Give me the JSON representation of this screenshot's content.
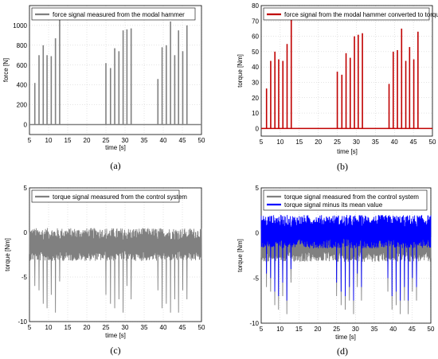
{
  "chart_data": [
    {
      "type": "bar",
      "panel_label": "(a)",
      "xlabel": "time [s]",
      "ylabel": "force [N]",
      "xlim": [
        5,
        50
      ],
      "ylim": [
        -100,
        1200
      ],
      "xticks": [
        5,
        10,
        15,
        20,
        25,
        30,
        35,
        40,
        45,
        50
      ],
      "yticks": [
        0,
        200,
        400,
        600,
        800,
        1000
      ],
      "grid": true,
      "legend_position": "top-left",
      "series": [
        {
          "name": "force signal measured from the modal hammer",
          "color": "#808080",
          "x": [
            6.4,
            7.5,
            8.6,
            9.6,
            10.7,
            11.8,
            12.9,
            25.0,
            26.2,
            27.3,
            28.4,
            29.5,
            30.5,
            31.6,
            38.6,
            39.7,
            40.8,
            41.9,
            43.0,
            44.0,
            45.1,
            46.2
          ],
          "values": [
            420,
            700,
            800,
            700,
            690,
            870,
            1150,
            620,
            570,
            770,
            740,
            950,
            960,
            970,
            460,
            780,
            800,
            1040,
            700,
            950,
            740,
            1000
          ]
        }
      ]
    },
    {
      "type": "bar",
      "panel_label": "(b)",
      "xlabel": "time [s]",
      "ylabel": "torque [Nm]",
      "xlim": [
        5,
        50
      ],
      "ylim": [
        -5,
        80
      ],
      "xticks": [
        5,
        10,
        15,
        20,
        25,
        30,
        35,
        40,
        45,
        50
      ],
      "yticks": [
        0,
        10,
        20,
        30,
        40,
        50,
        60,
        70,
        80
      ],
      "grid": true,
      "legend_position": "top-left",
      "series": [
        {
          "name": "force signal from the modal hammer converted to torque",
          "color": "#c00000",
          "x": [
            6.4,
            7.5,
            8.6,
            9.6,
            10.7,
            11.8,
            12.9,
            25.0,
            26.2,
            27.3,
            28.4,
            29.5,
            30.5,
            31.6,
            38.6,
            39.7,
            40.8,
            41.9,
            43.0,
            44.0,
            45.1,
            46.2
          ],
          "values": [
            26,
            44,
            50,
            45,
            44,
            55,
            72,
            37,
            35,
            49,
            46,
            60,
            61,
            62,
            29,
            50,
            51,
            65,
            44,
            53,
            45,
            63
          ]
        }
      ]
    },
    {
      "type": "line",
      "panel_label": "(c)",
      "xlabel": "time [s]",
      "ylabel": "torque [Nm]",
      "xlim": [
        5,
        50
      ],
      "ylim": [
        -10,
        5
      ],
      "xticks": [
        5,
        10,
        15,
        20,
        25,
        30,
        35,
        40,
        45,
        50
      ],
      "yticks": [
        -10,
        -5,
        0,
        5
      ],
      "grid": true,
      "legend_position": "top-left",
      "series": [
        {
          "name": "torque signal measured from the control system",
          "color": "#808080",
          "mean": -1.5,
          "noise_band": [
            -3.2,
            0.5
          ],
          "dips_x": [
            6.4,
            7.5,
            8.6,
            9.6,
            10.7,
            11.8,
            12.9,
            25.0,
            26.2,
            27.3,
            28.4,
            29.5,
            30.5,
            31.6,
            38.6,
            39.7,
            40.8,
            41.9,
            43.0,
            44.0,
            45.1,
            46.2
          ],
          "dips_y": [
            -6.0,
            -6.5,
            -8.0,
            -8.5,
            -7.0,
            -9.0,
            -5.5,
            -7.0,
            -8.0,
            -8.5,
            -7.5,
            -9.0,
            -6.0,
            -7.5,
            -6.5,
            -8.5,
            -8.0,
            -9.0,
            -7.5,
            -9.0,
            -6.5,
            -7.5
          ]
        }
      ]
    },
    {
      "type": "line",
      "panel_label": "(d)",
      "xlabel": "time [s]",
      "ylabel": "torque [Nm]",
      "xlim": [
        5,
        50
      ],
      "ylim": [
        -10,
        5
      ],
      "xticks": [
        5,
        10,
        15,
        20,
        25,
        30,
        35,
        40,
        45,
        50
      ],
      "yticks": [
        -10,
        -5,
        0,
        5
      ],
      "grid": true,
      "legend_position": "top-left",
      "series": [
        {
          "name": "torque signal measured from the control system",
          "color": "#808080",
          "mean": -1.5,
          "noise_band": [
            -3.2,
            0.5
          ],
          "dips_x": [
            6.4,
            7.5,
            8.6,
            9.6,
            10.7,
            11.8,
            12.9,
            25.0,
            26.2,
            27.3,
            28.4,
            29.5,
            30.5,
            31.6,
            38.6,
            39.7,
            40.8,
            41.9,
            43.0,
            44.0,
            45.1,
            46.2
          ],
          "dips_y": [
            -6.0,
            -6.5,
            -8.0,
            -8.5,
            -7.0,
            -9.0,
            -5.5,
            -7.0,
            -8.0,
            -8.5,
            -7.5,
            -9.0,
            -6.0,
            -7.5,
            -6.5,
            -8.5,
            -8.0,
            -9.0,
            -7.5,
            -9.0,
            -6.5,
            -7.5
          ]
        },
        {
          "name": "torque signal minus its mean value",
          "color": "#0000ff",
          "mean": 0.0,
          "noise_band": [
            -1.7,
            2.0
          ],
          "dips_x": [
            6.4,
            7.5,
            8.6,
            9.6,
            10.7,
            11.8,
            12.9,
            25.0,
            26.2,
            27.3,
            28.4,
            29.5,
            30.5,
            31.6,
            38.6,
            39.7,
            40.8,
            41.9,
            43.0,
            44.0,
            45.1,
            46.2
          ],
          "dips_y": [
            -4.5,
            -5.0,
            -6.5,
            -7.0,
            -5.5,
            -7.5,
            -4.0,
            -5.5,
            -6.5,
            -7.0,
            -6.0,
            -7.5,
            -4.5,
            -6.0,
            -5.0,
            -7.0,
            -6.5,
            -7.5,
            -6.0,
            -7.5,
            -5.0,
            -6.0
          ]
        }
      ]
    }
  ]
}
